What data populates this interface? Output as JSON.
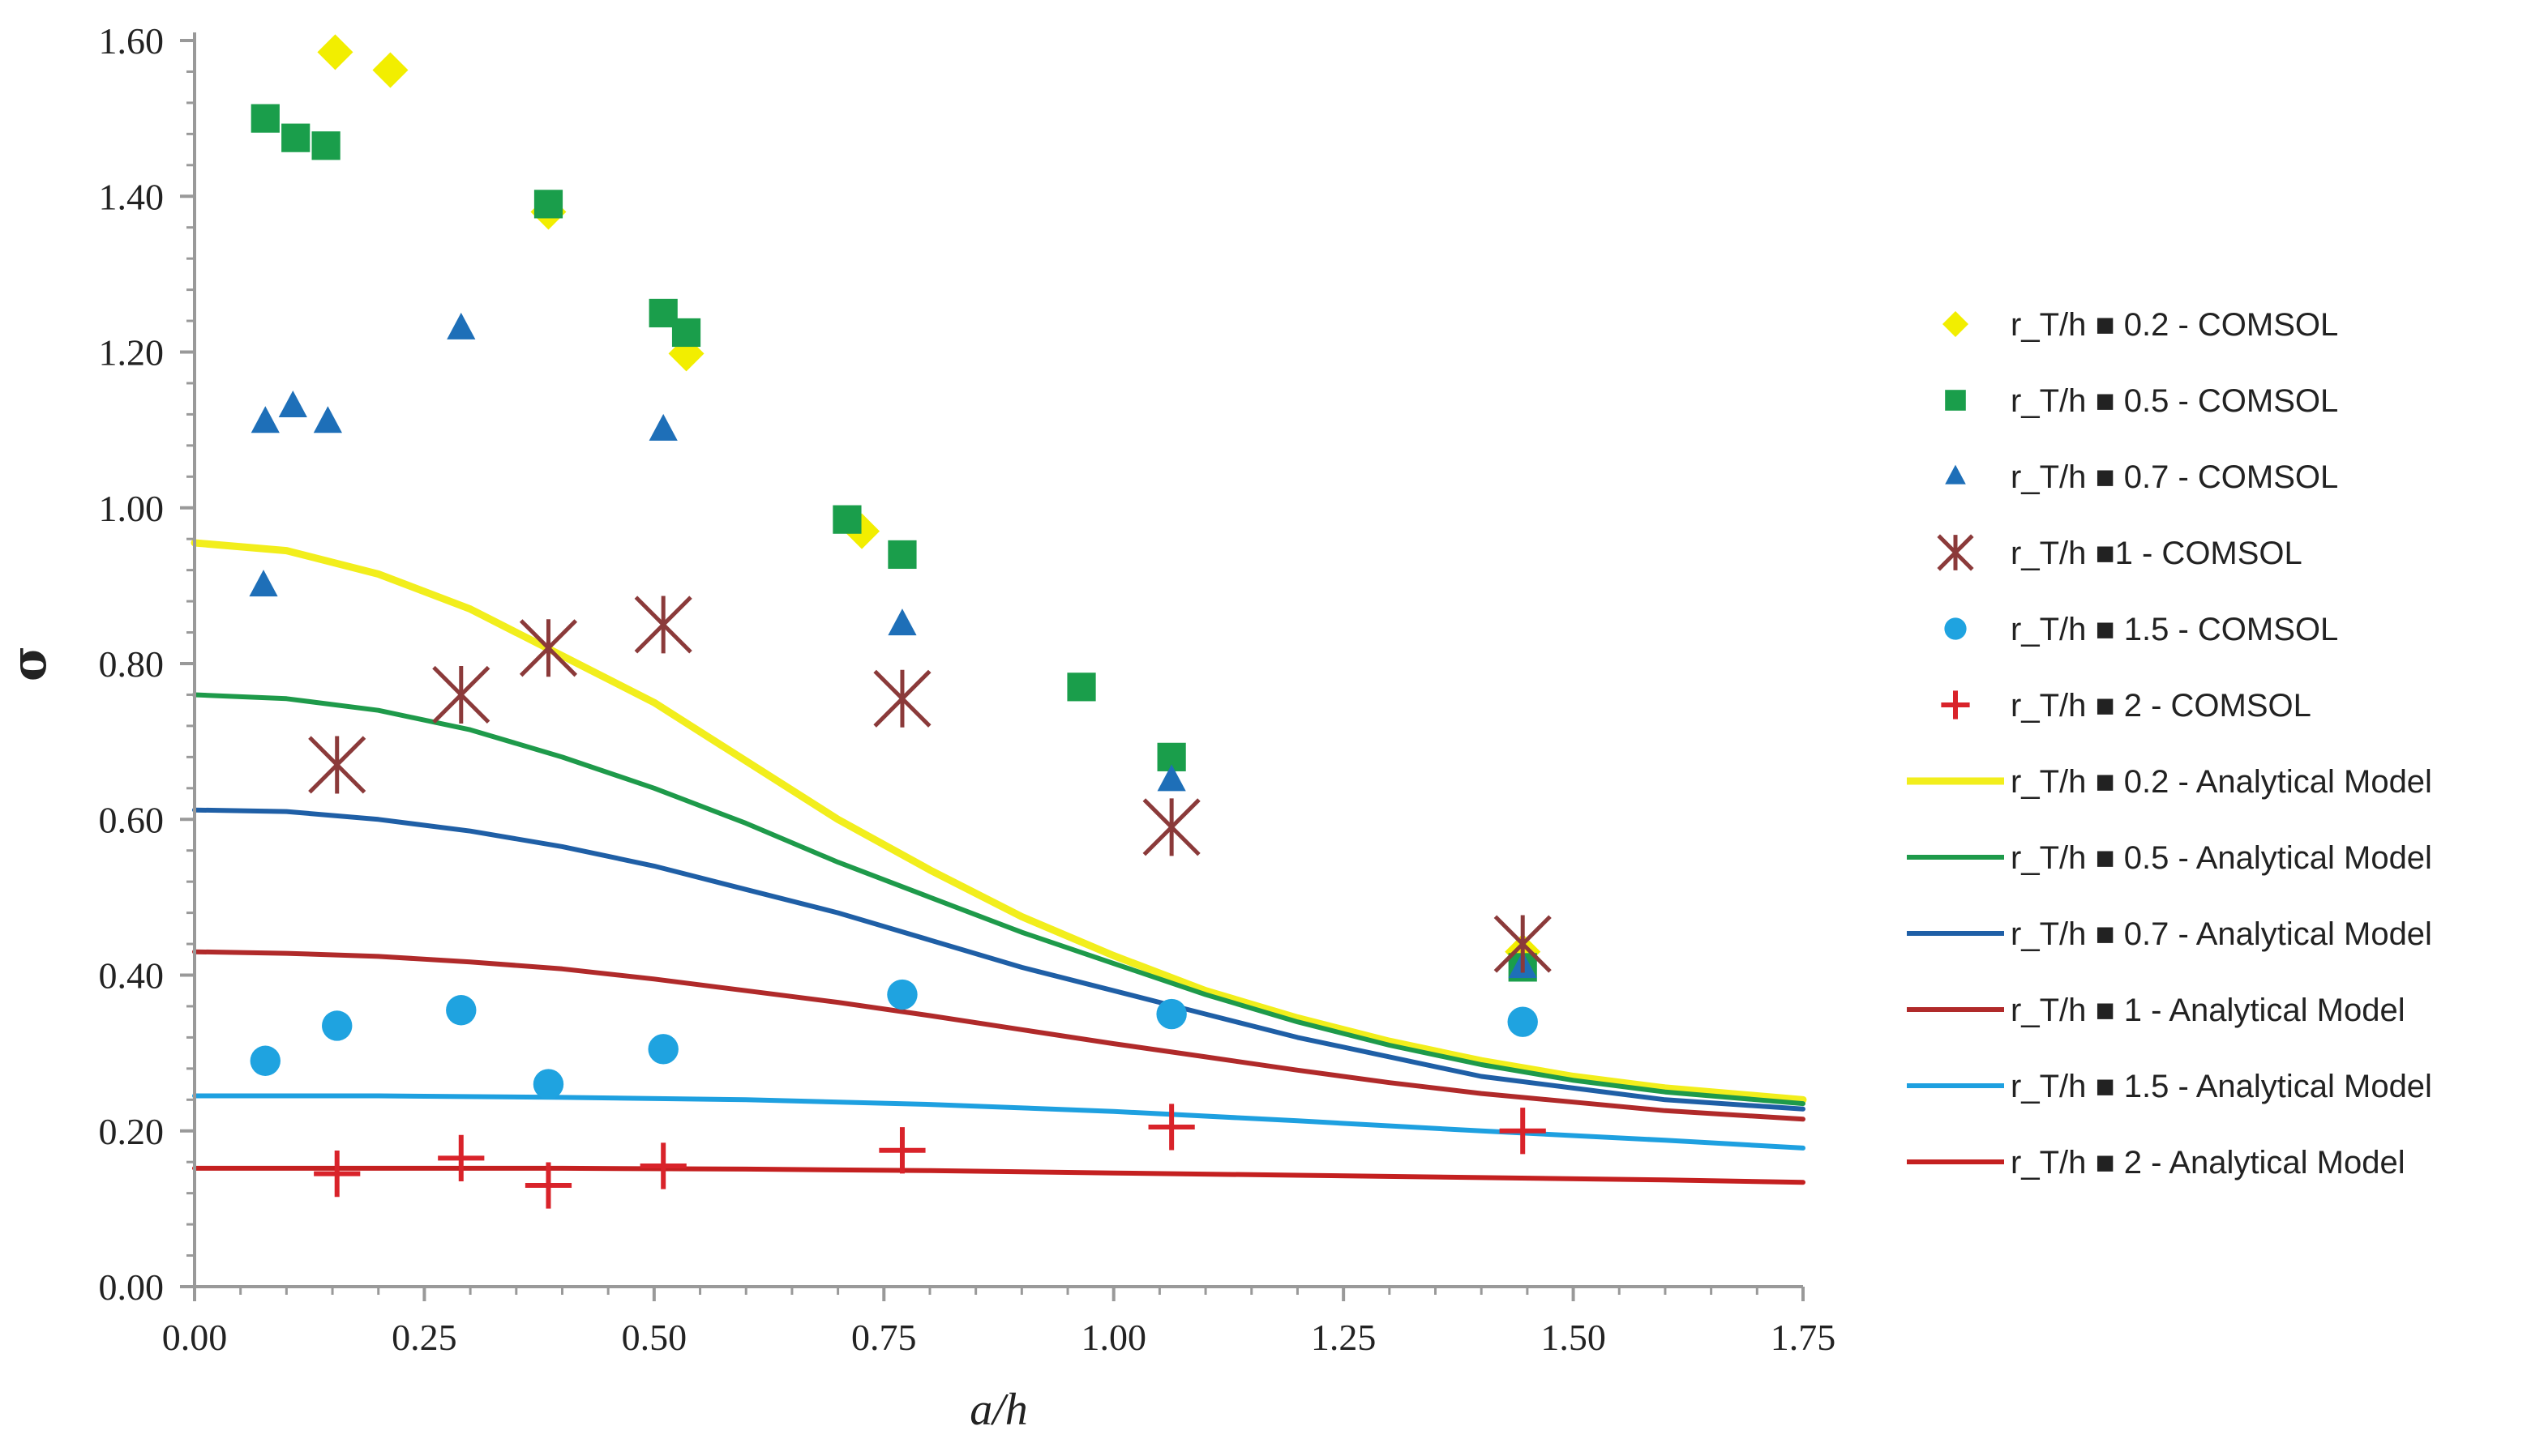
{
  "chart_data": {
    "type": "scatter",
    "title": "",
    "xlabel": "a/h",
    "ylabel": "σ",
    "xlim": [
      0,
      1.75
    ],
    "ylim": [
      0,
      1.6
    ],
    "x_ticks": [
      "0.00",
      "0.25",
      "0.50",
      "0.75",
      "1.00",
      "1.25",
      "1.50",
      "1.75"
    ],
    "y_ticks": [
      "0.00",
      "0.20",
      "0.40",
      "0.60",
      "0.80",
      "1.00",
      "1.20",
      "1.40",
      "1.60"
    ],
    "grid": false,
    "legend_position": "right",
    "series": [
      {
        "name": "r_T/h ■ 0.2 - COMSOL",
        "kind": "points",
        "marker": "diamond",
        "color": "#f2ee00",
        "points": [
          [
            0.153,
            1.585
          ],
          [
            0.213,
            1.562
          ],
          [
            0.385,
            1.38
          ],
          [
            0.535,
            1.198
          ],
          [
            0.726,
            0.97
          ],
          [
            1.445,
            0.43
          ]
        ]
      },
      {
        "name": "r_T/h ■ 0.5 - COMSOL",
        "kind": "points",
        "marker": "square",
        "color": "#1a9e4b",
        "points": [
          [
            0.077,
            1.5
          ],
          [
            0.11,
            1.475
          ],
          [
            0.143,
            1.465
          ],
          [
            0.385,
            1.39
          ],
          [
            0.51,
            1.25
          ],
          [
            0.535,
            1.225
          ],
          [
            0.71,
            0.985
          ],
          [
            0.77,
            0.94
          ],
          [
            0.965,
            0.77
          ],
          [
            1.063,
            0.68
          ],
          [
            1.445,
            0.41
          ]
        ]
      },
      {
        "name": "r_T/h ■ 0.7 - COMSOL",
        "kind": "points",
        "marker": "triangle",
        "color": "#1e6fb8",
        "points": [
          [
            0.075,
            0.9
          ],
          [
            0.077,
            1.11
          ],
          [
            0.107,
            1.13
          ],
          [
            0.145,
            1.11
          ],
          [
            0.29,
            1.23
          ],
          [
            0.51,
            1.1
          ],
          [
            0.77,
            0.85
          ],
          [
            1.063,
            0.65
          ],
          [
            1.445,
            0.41
          ]
        ]
      },
      {
        "name": "r_T/h ■1 - COMSOL",
        "kind": "points",
        "marker": "asterisk",
        "color": "#8b3a3a",
        "points": [
          [
            0.155,
            0.67
          ],
          [
            0.29,
            0.76
          ],
          [
            0.385,
            0.82
          ],
          [
            0.51,
            0.85
          ],
          [
            0.77,
            0.755
          ],
          [
            1.063,
            0.59
          ],
          [
            1.445,
            0.44
          ]
        ]
      },
      {
        "name": "r_T/h ■ 1.5 - COMSOL",
        "kind": "points",
        "marker": "circle",
        "color": "#1fa3e0",
        "points": [
          [
            0.077,
            0.29
          ],
          [
            0.155,
            0.335
          ],
          [
            0.29,
            0.355
          ],
          [
            0.385,
            0.26
          ],
          [
            0.51,
            0.305
          ],
          [
            0.77,
            0.375
          ],
          [
            1.063,
            0.35
          ],
          [
            1.445,
            0.34
          ]
        ]
      },
      {
        "name": "r_T/h ■ 2 - COMSOL",
        "kind": "points",
        "marker": "plus",
        "color": "#d9232a",
        "points": [
          [
            0.155,
            0.145
          ],
          [
            0.29,
            0.165
          ],
          [
            0.385,
            0.13
          ],
          [
            0.51,
            0.155
          ],
          [
            0.77,
            0.175
          ],
          [
            1.063,
            0.205
          ],
          [
            1.445,
            0.2
          ]
        ]
      },
      {
        "name": "r_T/h ■ 0.2 - Analytical Model",
        "kind": "line",
        "color": "#f2ee1c",
        "width": 9,
        "points": [
          [
            0,
            0.955
          ],
          [
            0.1,
            0.945
          ],
          [
            0.2,
            0.915
          ],
          [
            0.3,
            0.87
          ],
          [
            0.4,
            0.81
          ],
          [
            0.5,
            0.75
          ],
          [
            0.6,
            0.675
          ],
          [
            0.7,
            0.6
          ],
          [
            0.8,
            0.535
          ],
          [
            0.9,
            0.475
          ],
          [
            1.0,
            0.425
          ],
          [
            1.1,
            0.38
          ],
          [
            1.2,
            0.345
          ],
          [
            1.3,
            0.315
          ],
          [
            1.4,
            0.29
          ],
          [
            1.5,
            0.27
          ],
          [
            1.6,
            0.255
          ],
          [
            1.75,
            0.24
          ]
        ]
      },
      {
        "name": "r_T/h ■ 0.5 - Analytical Model",
        "kind": "line",
        "color": "#1e9a4a",
        "width": 6,
        "points": [
          [
            0,
            0.76
          ],
          [
            0.1,
            0.755
          ],
          [
            0.2,
            0.74
          ],
          [
            0.3,
            0.715
          ],
          [
            0.4,
            0.68
          ],
          [
            0.5,
            0.64
          ],
          [
            0.6,
            0.595
          ],
          [
            0.7,
            0.545
          ],
          [
            0.8,
            0.5
          ],
          [
            0.9,
            0.455
          ],
          [
            1.0,
            0.415
          ],
          [
            1.1,
            0.375
          ],
          [
            1.2,
            0.34
          ],
          [
            1.3,
            0.31
          ],
          [
            1.4,
            0.285
          ],
          [
            1.5,
            0.265
          ],
          [
            1.6,
            0.25
          ],
          [
            1.75,
            0.235
          ]
        ]
      },
      {
        "name": "r_T/h ■ 0.7 - Analytical Model",
        "kind": "line",
        "color": "#1f5fa6",
        "width": 6,
        "points": [
          [
            0,
            0.612
          ],
          [
            0.1,
            0.61
          ],
          [
            0.2,
            0.6
          ],
          [
            0.3,
            0.585
          ],
          [
            0.4,
            0.565
          ],
          [
            0.5,
            0.54
          ],
          [
            0.6,
            0.51
          ],
          [
            0.7,
            0.48
          ],
          [
            0.8,
            0.445
          ],
          [
            0.9,
            0.41
          ],
          [
            1.0,
            0.38
          ],
          [
            1.1,
            0.35
          ],
          [
            1.2,
            0.32
          ],
          [
            1.3,
            0.295
          ],
          [
            1.4,
            0.27
          ],
          [
            1.5,
            0.255
          ],
          [
            1.6,
            0.24
          ],
          [
            1.75,
            0.228
          ]
        ]
      },
      {
        "name": "r_T/h ■ 1 - Analytical Model",
        "kind": "line",
        "color": "#b02a2a",
        "width": 6,
        "points": [
          [
            0,
            0.43
          ],
          [
            0.1,
            0.428
          ],
          [
            0.2,
            0.424
          ],
          [
            0.3,
            0.417
          ],
          [
            0.4,
            0.408
          ],
          [
            0.5,
            0.395
          ],
          [
            0.6,
            0.38
          ],
          [
            0.7,
            0.365
          ],
          [
            0.8,
            0.348
          ],
          [
            0.9,
            0.33
          ],
          [
            1.0,
            0.312
          ],
          [
            1.1,
            0.295
          ],
          [
            1.2,
            0.278
          ],
          [
            1.3,
            0.262
          ],
          [
            1.4,
            0.248
          ],
          [
            1.5,
            0.237
          ],
          [
            1.6,
            0.226
          ],
          [
            1.75,
            0.215
          ]
        ]
      },
      {
        "name": "r_T/h ■ 1.5 - Analytical Model",
        "kind": "line",
        "color": "#1ea0e0",
        "width": 6,
        "points": [
          [
            0,
            0.245
          ],
          [
            0.2,
            0.245
          ],
          [
            0.4,
            0.243
          ],
          [
            0.6,
            0.24
          ],
          [
            0.8,
            0.234
          ],
          [
            1.0,
            0.225
          ],
          [
            1.2,
            0.213
          ],
          [
            1.4,
            0.2
          ],
          [
            1.6,
            0.188
          ],
          [
            1.75,
            0.178
          ]
        ]
      },
      {
        "name": "r_T/h ■ 2 - Analytical Model",
        "kind": "line",
        "color": "#c42020",
        "width": 6,
        "points": [
          [
            0,
            0.152
          ],
          [
            0.2,
            0.152
          ],
          [
            0.4,
            0.152
          ],
          [
            0.6,
            0.151
          ],
          [
            0.8,
            0.149
          ],
          [
            1.0,
            0.146
          ],
          [
            1.2,
            0.143
          ],
          [
            1.4,
            0.14
          ],
          [
            1.6,
            0.137
          ],
          [
            1.75,
            0.134
          ]
        ]
      }
    ]
  }
}
